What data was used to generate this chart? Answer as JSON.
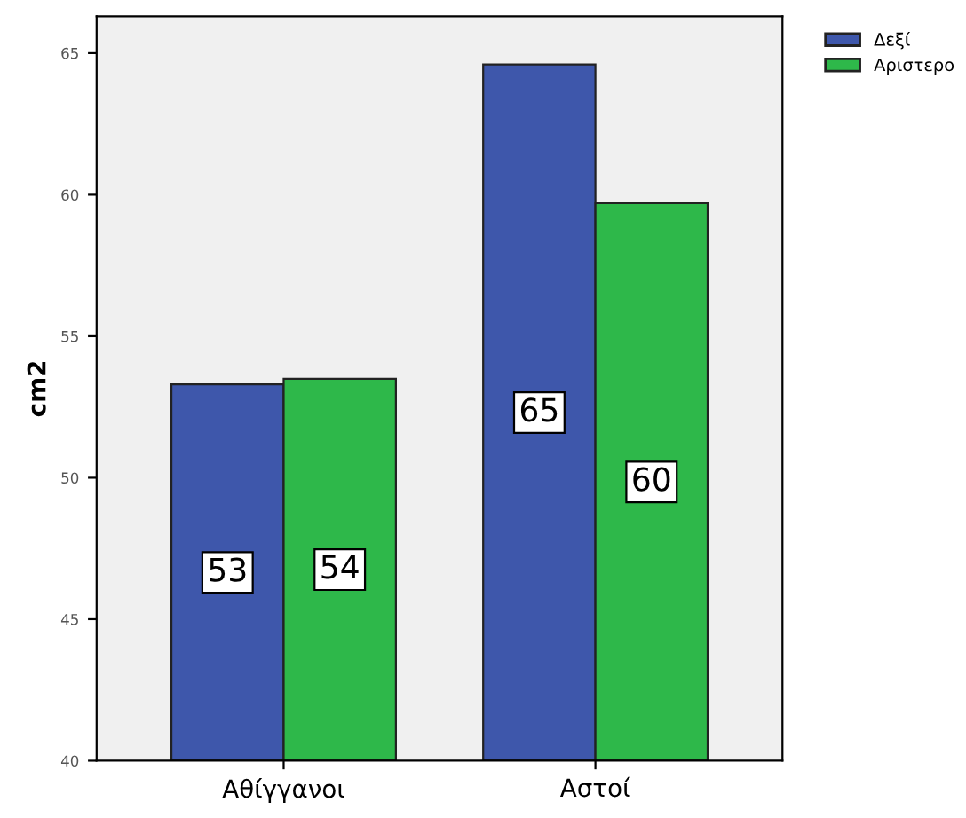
{
  "chart_data": {
    "type": "bar",
    "ylabel": "cm2",
    "categories": [
      "Αθίγγανοι",
      "Αστοί"
    ],
    "series": [
      {
        "name": "Δεξί",
        "color": "#3e57ab",
        "values": [
          53.3,
          64.6
        ],
        "value_labels": [
          "53",
          "65"
        ]
      },
      {
        "name": "Αριστερο",
        "color": "#2eb84a",
        "values": [
          53.5,
          59.7
        ],
        "value_labels": [
          "54",
          "60"
        ]
      }
    ],
    "ylim": [
      40,
      66.3
    ],
    "yticks": [
      40,
      45,
      50,
      55,
      60,
      65
    ],
    "grid": false,
    "legend": "top right"
  }
}
